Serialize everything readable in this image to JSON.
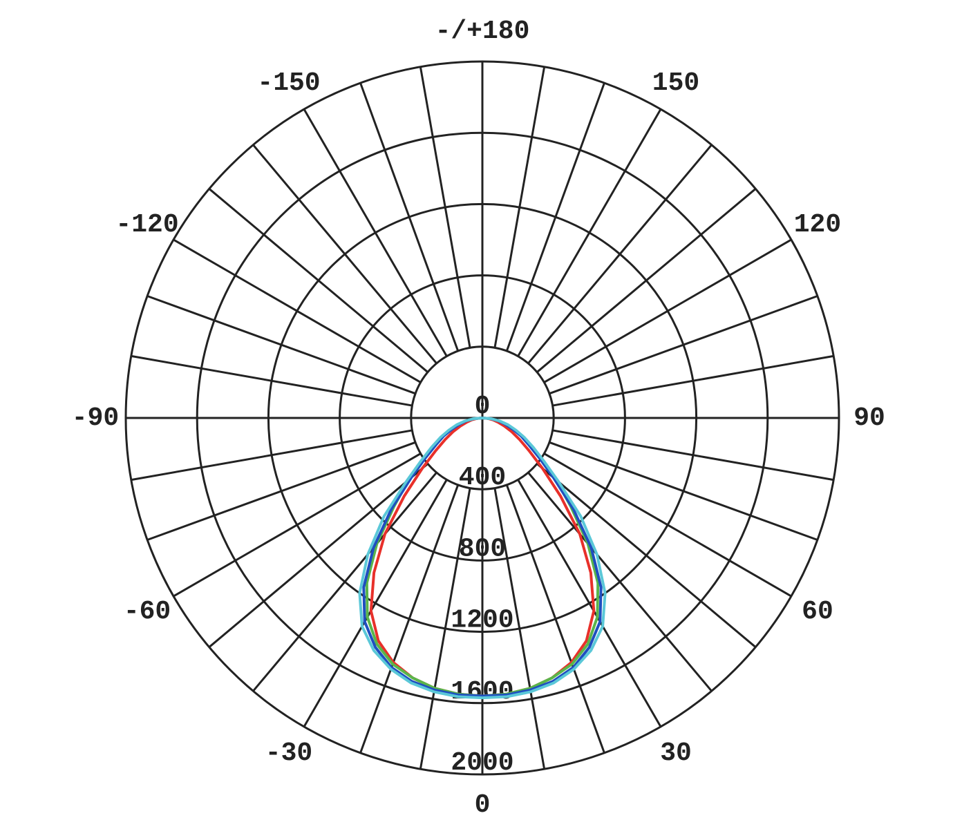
{
  "chart_data": {
    "type": "polar",
    "x": [
      -90,
      -85,
      -80,
      -75,
      -70,
      -65,
      -60,
      -55,
      -50,
      -45,
      -40,
      -35,
      -30,
      -25,
      -20,
      -15,
      -10,
      -5,
      0,
      5,
      10,
      15,
      20,
      25,
      30,
      35,
      40,
      45,
      50,
      55,
      60,
      65,
      70,
      75,
      80,
      85,
      90
    ],
    "series": [
      {
        "color": "#e8302a",
        "values": [
          0,
          30,
          60,
          90,
          130,
          180,
          240,
          320,
          440,
          620,
          850,
          1060,
          1250,
          1380,
          1460,
          1510,
          1540,
          1555,
          1560,
          1555,
          1540,
          1510,
          1460,
          1380,
          1250,
          1060,
          850,
          620,
          440,
          320,
          240,
          180,
          130,
          90,
          60,
          30,
          0
        ]
      },
      {
        "color": "#5ab54a",
        "values": [
          0,
          45,
          90,
          135,
          185,
          245,
          310,
          400,
          540,
          700,
          920,
          1130,
          1290,
          1400,
          1470,
          1510,
          1540,
          1555,
          1560,
          1555,
          1540,
          1510,
          1470,
          1400,
          1290,
          1130,
          920,
          700,
          540,
          400,
          310,
          245,
          185,
          135,
          90,
          45,
          0
        ]
      },
      {
        "color": "#1f4fbf",
        "values": [
          0,
          45,
          90,
          130,
          180,
          240,
          300,
          390,
          520,
          720,
          950,
          1160,
          1320,
          1420,
          1490,
          1530,
          1550,
          1560,
          1560,
          1560,
          1550,
          1530,
          1490,
          1420,
          1320,
          1160,
          950,
          720,
          520,
          390,
          300,
          240,
          180,
          130,
          90,
          45,
          0
        ]
      },
      {
        "color": "#5bc8d8",
        "values": [
          0,
          50,
          100,
          150,
          200,
          260,
          330,
          420,
          560,
          780,
          1000,
          1200,
          1350,
          1440,
          1500,
          1540,
          1560,
          1570,
          1570,
          1570,
          1560,
          1540,
          1500,
          1440,
          1350,
          1200,
          1000,
          780,
          560,
          420,
          330,
          260,
          200,
          150,
          100,
          50,
          0
        ]
      }
    ],
    "ylim": [
      0,
      2000
    ],
    "yticks": [
      0,
      400,
      800,
      1200,
      1600,
      2000
    ],
    "xticks": [
      0,
      30,
      60,
      90,
      120,
      150,
      {
        "value": 180,
        "label": "-/+180"
      },
      -150,
      -120,
      -90,
      -60,
      -30
    ]
  }
}
